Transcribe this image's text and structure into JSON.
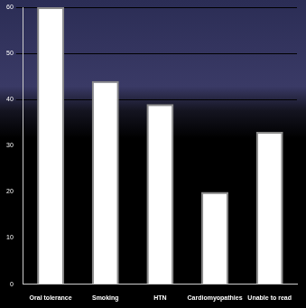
{
  "chart_data": {
    "type": "bar",
    "categories": [
      "Oral tolerance",
      "Smoking",
      "HTN",
      "Cardiomyopathies",
      "Unable to read"
    ],
    "values": [
      60,
      44,
      39,
      20,
      33
    ],
    "color": "#ffffff",
    "ylim": [
      0,
      60
    ],
    "yticks": [
      0,
      10,
      20,
      30,
      40,
      50,
      60
    ],
    "grid": true
  }
}
